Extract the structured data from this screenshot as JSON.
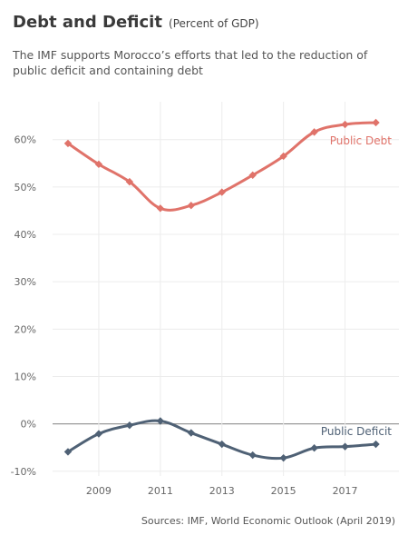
{
  "header": {
    "title": "Debt and Deficit",
    "title_unit": "(Percent of GDP)",
    "subtitle": "The IMF supports Morocco’s efforts that led to the reduction of public deficit and containing debt"
  },
  "footer": {
    "source": "Sources: IMF, World Economic Outlook (April 2019)"
  },
  "chart_data": {
    "type": "line",
    "title": "Debt and Deficit",
    "subtitle": "(Percent of GDP)",
    "xlabel": "",
    "ylabel": "",
    "x": [
      2008,
      2009,
      2010,
      2011,
      2012,
      2013,
      2014,
      2015,
      2016,
      2017,
      2018
    ],
    "x_tick_values": [
      2009,
      2011,
      2013,
      2015,
      2017
    ],
    "x_tick_labels": [
      "2009",
      "2011",
      "2013",
      "2015",
      "2017"
    ],
    "xlim": [
      2007.5,
      2018.75
    ],
    "ylim": [
      -11,
      68
    ],
    "y_tick_values": [
      -10,
      0,
      10,
      20,
      30,
      40,
      50,
      60
    ],
    "y_tick_labels": [
      "-10%",
      "0%",
      "10%",
      "20%",
      "30%",
      "40%",
      "50%",
      "60%"
    ],
    "grid": true,
    "legend": "direct labels at right end of series",
    "series": [
      {
        "name": "Public Debt",
        "color": "#e0736a",
        "values": [
          59.2,
          54.8,
          51.1,
          45.5,
          46.1,
          48.9,
          52.5,
          56.5,
          61.6,
          63.2,
          63.6
        ]
      },
      {
        "name": "Public Deficit",
        "color": "#4f6175",
        "values": [
          -5.9,
          -2.1,
          -0.3,
          0.6,
          -1.9,
          -4.3,
          -6.6,
          -7.2,
          -5.1,
          -4.8,
          -4.3
        ]
      }
    ]
  }
}
